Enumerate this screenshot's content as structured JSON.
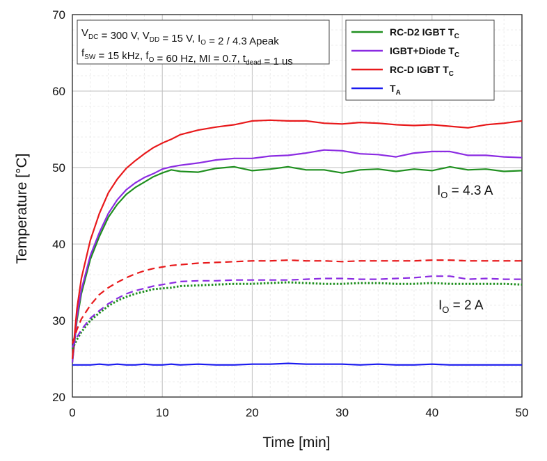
{
  "chart_data": {
    "type": "line",
    "xlabel": "Time [min]",
    "ylabel": "Temperature [°C]",
    "xlim": [
      0,
      50
    ],
    "ylim": [
      20,
      70
    ],
    "xticks": [
      "0",
      "10",
      "20",
      "30",
      "40",
      "50"
    ],
    "yticks": [
      "20",
      "30",
      "40",
      "50",
      "60",
      "70"
    ],
    "grid": true,
    "legend_position": "top-right",
    "annotation_lines": [
      "V_DC = 300 V, V_DD = 15 V, I_O = 2 / 4.3 Apeak",
      "f_SW = 15 kHz, f_O = 60 Hz, MI = 0.7, t_dead = 1 us"
    ],
    "inline_labels": [
      {
        "text": "I_O = 4.3 A"
      },
      {
        "text": "I_O = 2 A"
      }
    ],
    "x": [
      0,
      0.5,
      1,
      2,
      3,
      4,
      5,
      6,
      7,
      8,
      9,
      10,
      11,
      12,
      14,
      16,
      18,
      20,
      22,
      24,
      26,
      28,
      30,
      32,
      34,
      36,
      38,
      40,
      42,
      44,
      46,
      48,
      50
    ],
    "series": [
      {
        "name": "RC-D2 IGBT Tc",
        "color": "#1f8f1f",
        "style": "solid",
        "values": [
          24.5,
          30,
          33.5,
          38,
          41,
          43.5,
          45.2,
          46.5,
          47.4,
          48.1,
          48.8,
          49.3,
          49.7,
          49.5,
          49.4,
          49.9,
          50.1,
          49.6,
          49.8,
          50.1,
          49.7,
          49.7,
          49.3,
          49.7,
          49.8,
          49.5,
          49.8,
          49.6,
          50.1,
          49.7,
          49.8,
          49.5,
          49.6
        ]
      },
      {
        "name": "IGBT+Diode Tc",
        "color": "#8b2be2",
        "style": "solid",
        "values": [
          24.5,
          30.5,
          34,
          38.5,
          41.5,
          44,
          45.8,
          47.1,
          48,
          48.7,
          49.2,
          49.8,
          50.1,
          50.3,
          50.6,
          51,
          51.2,
          51.2,
          51.5,
          51.6,
          51.9,
          52.3,
          52.2,
          51.8,
          51.7,
          51.4,
          51.9,
          52.1,
          52.1,
          51.6,
          51.6,
          51.4,
          51.3
        ]
      },
      {
        "name": "RC-D IGBT Tc",
        "color": "#e8191b",
        "style": "solid",
        "values": [
          25,
          31.5,
          35.5,
          40.5,
          44,
          46.7,
          48.5,
          49.9,
          50.9,
          51.8,
          52.6,
          53.2,
          53.7,
          54.3,
          54.9,
          55.3,
          55.6,
          56.1,
          56.2,
          56.1,
          56.1,
          55.8,
          55.7,
          55.9,
          55.8,
          55.6,
          55.5,
          55.6,
          55.4,
          55.2,
          55.6,
          55.8,
          56.1
        ]
      },
      {
        "name": "TA",
        "color": "#1a1aef",
        "style": "solid",
        "values": [
          24.2,
          24.2,
          24.2,
          24.2,
          24.3,
          24.2,
          24.3,
          24.2,
          24.2,
          24.3,
          24.2,
          24.2,
          24.3,
          24.2,
          24.3,
          24.2,
          24.2,
          24.3,
          24.3,
          24.4,
          24.3,
          24.3,
          24.3,
          24.2,
          24.3,
          24.2,
          24.2,
          24.3,
          24.2,
          24.2,
          24.2,
          24.2,
          24.2
        ]
      },
      {
        "name": "RC-D2 IGBT Tc (2 A)",
        "color": "#1f8f1f",
        "style": "dotted",
        "values": [
          26.3,
          27.5,
          28.5,
          30,
          31,
          31.9,
          32.6,
          33.1,
          33.5,
          33.8,
          34.1,
          34.2,
          34.3,
          34.5,
          34.6,
          34.7,
          34.8,
          34.8,
          34.9,
          35,
          34.9,
          34.8,
          34.8,
          34.9,
          34.9,
          34.8,
          34.8,
          34.9,
          34.8,
          34.8,
          34.8,
          34.8,
          34.7
        ]
      },
      {
        "name": "IGBT+Diode Tc (2 A)",
        "color": "#8b2be2",
        "style": "dashed",
        "values": [
          26.5,
          27.8,
          28.8,
          30.3,
          31.3,
          32.2,
          32.9,
          33.5,
          33.9,
          34.2,
          34.5,
          34.7,
          34.9,
          35.1,
          35.2,
          35.2,
          35.3,
          35.3,
          35.3,
          35.3,
          35.4,
          35.5,
          35.5,
          35.4,
          35.4,
          35.5,
          35.6,
          35.8,
          35.8,
          35.4,
          35.5,
          35.4,
          35.4
        ]
      },
      {
        "name": "RC-D IGBT Tc (2 A)",
        "color": "#e8191b",
        "style": "dashed",
        "values": [
          27,
          28.8,
          30.2,
          32,
          33.4,
          34.3,
          35,
          35.6,
          36.1,
          36.5,
          36.8,
          37,
          37.2,
          37.3,
          37.5,
          37.6,
          37.7,
          37.8,
          37.8,
          37.9,
          37.8,
          37.8,
          37.7,
          37.8,
          37.8,
          37.8,
          37.8,
          37.9,
          37.9,
          37.8,
          37.8,
          37.8,
          37.8
        ]
      }
    ],
    "legend": [
      {
        "label": "RC-D2 IGBT T",
        "sub": "C",
        "color": "#1f8f1f"
      },
      {
        "label": "IGBT+Diode T",
        "sub": "C",
        "color": "#8b2be2"
      },
      {
        "label": "RC-D IGBT T",
        "sub": "C",
        "color": "#e8191b"
      },
      {
        "label": "T",
        "sub": "A",
        "color": "#1a1aef"
      }
    ]
  }
}
